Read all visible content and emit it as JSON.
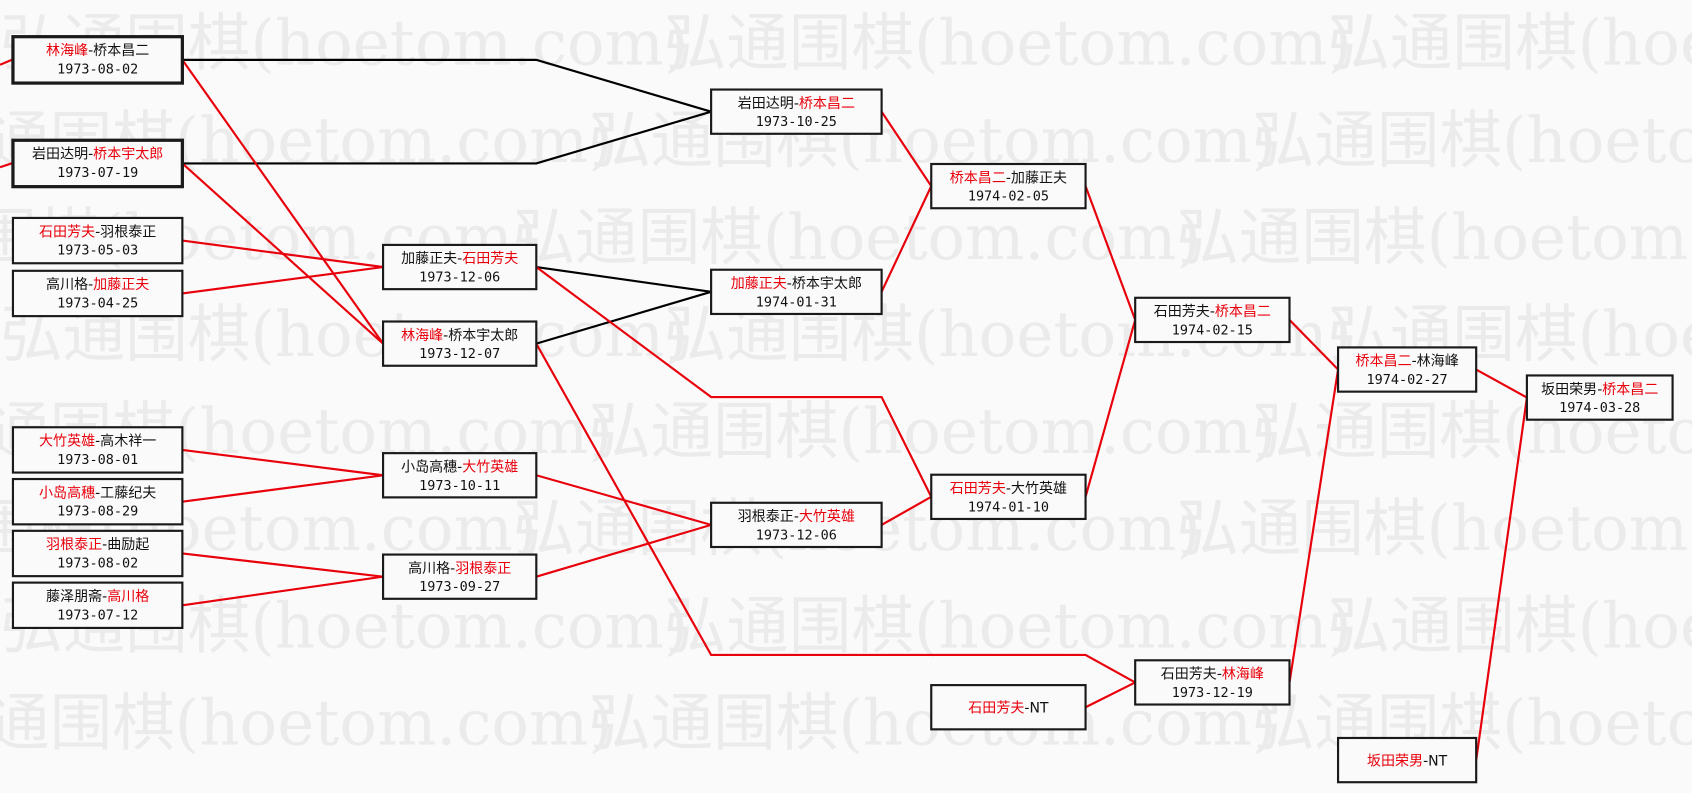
{
  "watermark": "弘通围棋(hoetom.com)",
  "colors": {
    "winner": "#e8000b",
    "loser_line": "#000000",
    "winner_line": "#e8000b",
    "box_border": "#1a1a1a"
  },
  "matches": [
    {
      "id": "A1",
      "p1": "林海峰",
      "p2": "桥本昌二",
      "winner": 1,
      "date": "1973-08-02"
    },
    {
      "id": "A2",
      "p1": "岩田达明",
      "p2": "桥本宇太郎",
      "winner": 2,
      "date": "1973-07-19"
    },
    {
      "id": "A3",
      "p1": "石田芳夫",
      "p2": "羽根泰正",
      "winner": 1,
      "date": "1973-05-03"
    },
    {
      "id": "A4",
      "p1": "高川格",
      "p2": "加藤正夫",
      "winner": 2,
      "date": "1973-04-25"
    },
    {
      "id": "A5",
      "p1": "大竹英雄",
      "p2": "高木祥一",
      "winner": 1,
      "date": "1973-08-01"
    },
    {
      "id": "A6",
      "p1": "小岛高穗",
      "p2": "工藤纪夫",
      "winner": 1,
      "date": "1973-08-29"
    },
    {
      "id": "A7",
      "p1": "羽根泰正",
      "p2": "曲励起",
      "winner": 1,
      "date": "1973-08-02"
    },
    {
      "id": "A8",
      "p1": "藤泽朋斋",
      "p2": "高川格",
      "winner": 2,
      "date": "1973-07-12"
    },
    {
      "id": "B1",
      "p1": "加藤正夫",
      "p2": "石田芳夫",
      "winner": 2,
      "date": "1973-12-06"
    },
    {
      "id": "B2",
      "p1": "林海峰",
      "p2": "桥本宇太郎",
      "winner": 1,
      "date": "1973-12-07"
    },
    {
      "id": "B3",
      "p1": "小岛高穗",
      "p2": "大竹英雄",
      "winner": 2,
      "date": "1973-10-11"
    },
    {
      "id": "B4",
      "p1": "高川格",
      "p2": "羽根泰正",
      "winner": 2,
      "date": "1973-09-27"
    },
    {
      "id": "C1",
      "p1": "岩田达明",
      "p2": "桥本昌二",
      "winner": 2,
      "date": "1973-10-25"
    },
    {
      "id": "C2",
      "p1": "加藤正夫",
      "p2": "桥本宇太郎",
      "winner": 1,
      "date": "1974-01-31"
    },
    {
      "id": "C3",
      "p1": "羽根泰正",
      "p2": "大竹英雄",
      "winner": 2,
      "date": "1973-12-06"
    },
    {
      "id": "D1",
      "p1": "桥本昌二",
      "p2": "加藤正夫",
      "winner": 1,
      "date": "1974-02-05"
    },
    {
      "id": "D2",
      "p1": "石田芳夫",
      "p2": "大竹英雄",
      "winner": 1,
      "date": "1974-01-10"
    },
    {
      "id": "D3",
      "p1": "石田芳夫",
      "p2": "NT",
      "winner": 1,
      "date": ""
    },
    {
      "id": "E1",
      "p1": "石田芳夫",
      "p2": "桥本昌二",
      "winner": 2,
      "date": "1974-02-15"
    },
    {
      "id": "E2",
      "p1": "石田芳夫",
      "p2": "林海峰",
      "winner": 2,
      "date": "1973-12-19"
    },
    {
      "id": "F1",
      "p1": "桥本昌二",
      "p2": "林海峰",
      "winner": 1,
      "date": "1974-02-27"
    },
    {
      "id": "F2",
      "p1": "坂田荣男",
      "p2": "NT",
      "winner": 1,
      "date": ""
    },
    {
      "id": "G1",
      "p1": "坂田荣男",
      "p2": "桥本昌二",
      "winner": 2,
      "date": "1974-03-28"
    }
  ]
}
